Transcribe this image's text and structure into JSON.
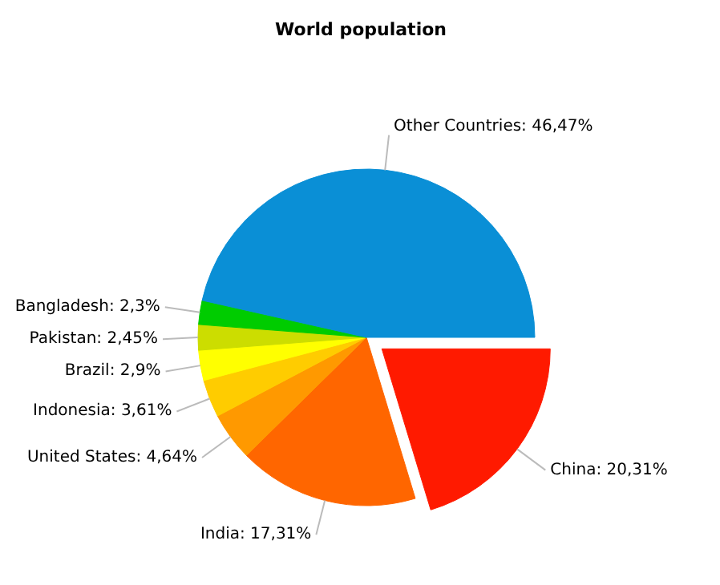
{
  "chart_data": {
    "type": "pie",
    "title": "World population",
    "categories": [
      "China",
      "India",
      "United States",
      "Indonesia",
      "Brazil",
      "Pakistan",
      "Bangladesh",
      "Other Countries"
    ],
    "values": [
      20.31,
      17.31,
      4.64,
      3.61,
      2.9,
      2.45,
      2.3,
      46.47
    ],
    "value_labels": [
      "20,31%",
      "17,31%",
      "4,64%",
      "3,61%",
      "2,9%",
      "2,45%",
      "2,3%",
      "46,47%"
    ],
    "colors": [
      "#ff1a00",
      "#ff6600",
      "#ff9900",
      "#ffcc00",
      "#ffff00",
      "#ccdd00",
      "#00cc00",
      "#0a8fd6"
    ],
    "legend": false
  }
}
